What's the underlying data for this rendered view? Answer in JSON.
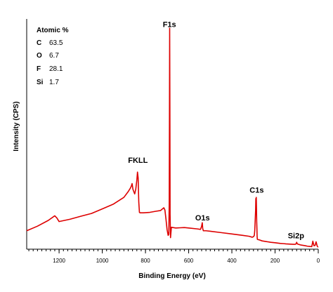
{
  "chart_data": {
    "type": "line",
    "title": "",
    "xlabel": "Binding Energy (eV)",
    "ylabel": "Intensity (CPS)",
    "x_reversed": true,
    "xlim": [
      1350,
      0
    ],
    "ylim": [
      0,
      100
    ],
    "grid": false,
    "line_color": "#dd0000",
    "x_ticks": [
      1200,
      1000,
      800,
      600,
      400,
      200,
      0
    ],
    "x_tick_labels": [
      "1200",
      "1000",
      "800",
      "600",
      "400",
      "200",
      "0"
    ],
    "composition": {
      "title": "Atomic %",
      "placement": "top-left",
      "entries": [
        {
          "element": "C",
          "value": "63.5"
        },
        {
          "element": "O",
          "value": "6.7"
        },
        {
          "element": "F",
          "value": "28.1"
        },
        {
          "element": "Si",
          "value": "1.7"
        }
      ]
    },
    "annotations": [
      {
        "text": "F1s",
        "x": 689,
        "y": 96.5
      },
      {
        "text": "FKLL",
        "x": 835,
        "y": 37.5
      },
      {
        "text": "O1s",
        "x": 536,
        "y": 12.5
      },
      {
        "text": "C1s",
        "x": 285,
        "y": 24.5
      },
      {
        "text": "Si2p",
        "x": 103,
        "y": 4.8
      }
    ],
    "series": [
      {
        "x": [
          1350,
          1300,
          1250,
          1220,
          1210,
          1200,
          1150,
          1100,
          1050,
          1000,
          950,
          900,
          880,
          870,
          865,
          862,
          858,
          850,
          845,
          840,
          837,
          834,
          831,
          828,
          825,
          822,
          818,
          810,
          780,
          750,
          730,
          715,
          710,
          705,
          700,
          695,
          692,
          690,
          689,
          688,
          687,
          686,
          684,
          680,
          660,
          620,
          600,
          560,
          545,
          540,
          537,
          535,
          532,
          528,
          520,
          500,
          450,
          400,
          350,
          320,
          306,
          300,
          296,
          294,
          292,
          290,
          289,
          288,
          287,
          286,
          285,
          284,
          283,
          282,
          280,
          275,
          260,
          240,
          220,
          200,
          175,
          160,
          150,
          130,
          115,
          108,
          104,
          102,
          100,
          98,
          95,
          80,
          60,
          50,
          40,
          30,
          25,
          20,
          15,
          10,
          5,
          2,
          0
        ],
        "y": [
          8,
          10,
          12.5,
          14.5,
          13.5,
          12,
          13,
          14.3,
          15.5,
          17.5,
          19.5,
          22.5,
          25,
          26.5,
          27.5,
          28.5,
          26,
          24,
          26,
          30,
          33.5,
          31,
          20.5,
          16,
          15.8,
          15.8,
          15.8,
          15.8,
          16,
          16.5,
          16.8,
          18,
          17,
          13,
          8.5,
          6,
          6.5,
          20,
          55,
          96,
          62,
          15,
          5,
          9.5,
          9.2,
          9.4,
          9.2,
          8.8,
          8.6,
          10,
          11.5,
          9,
          8,
          8,
          8,
          7.8,
          7.2,
          6.6,
          6,
          5.6,
          5.2,
          5.4,
          6,
          8,
          12.5,
          17,
          22,
          20,
          22.5,
          18,
          12,
          9,
          5.5,
          4.3,
          4.2,
          4.1,
          3.6,
          3.3,
          3,
          2.8,
          2.5,
          2.4,
          2.3,
          2.2,
          2.1,
          2.1,
          2.2,
          2.5,
          3,
          2.5,
          2.2,
          1.8,
          1.5,
          1.3,
          1.2,
          1.1,
          3.5,
          1.5,
          1.6,
          3.2,
          1.4,
          1,
          1.1
        ]
      }
    ]
  }
}
